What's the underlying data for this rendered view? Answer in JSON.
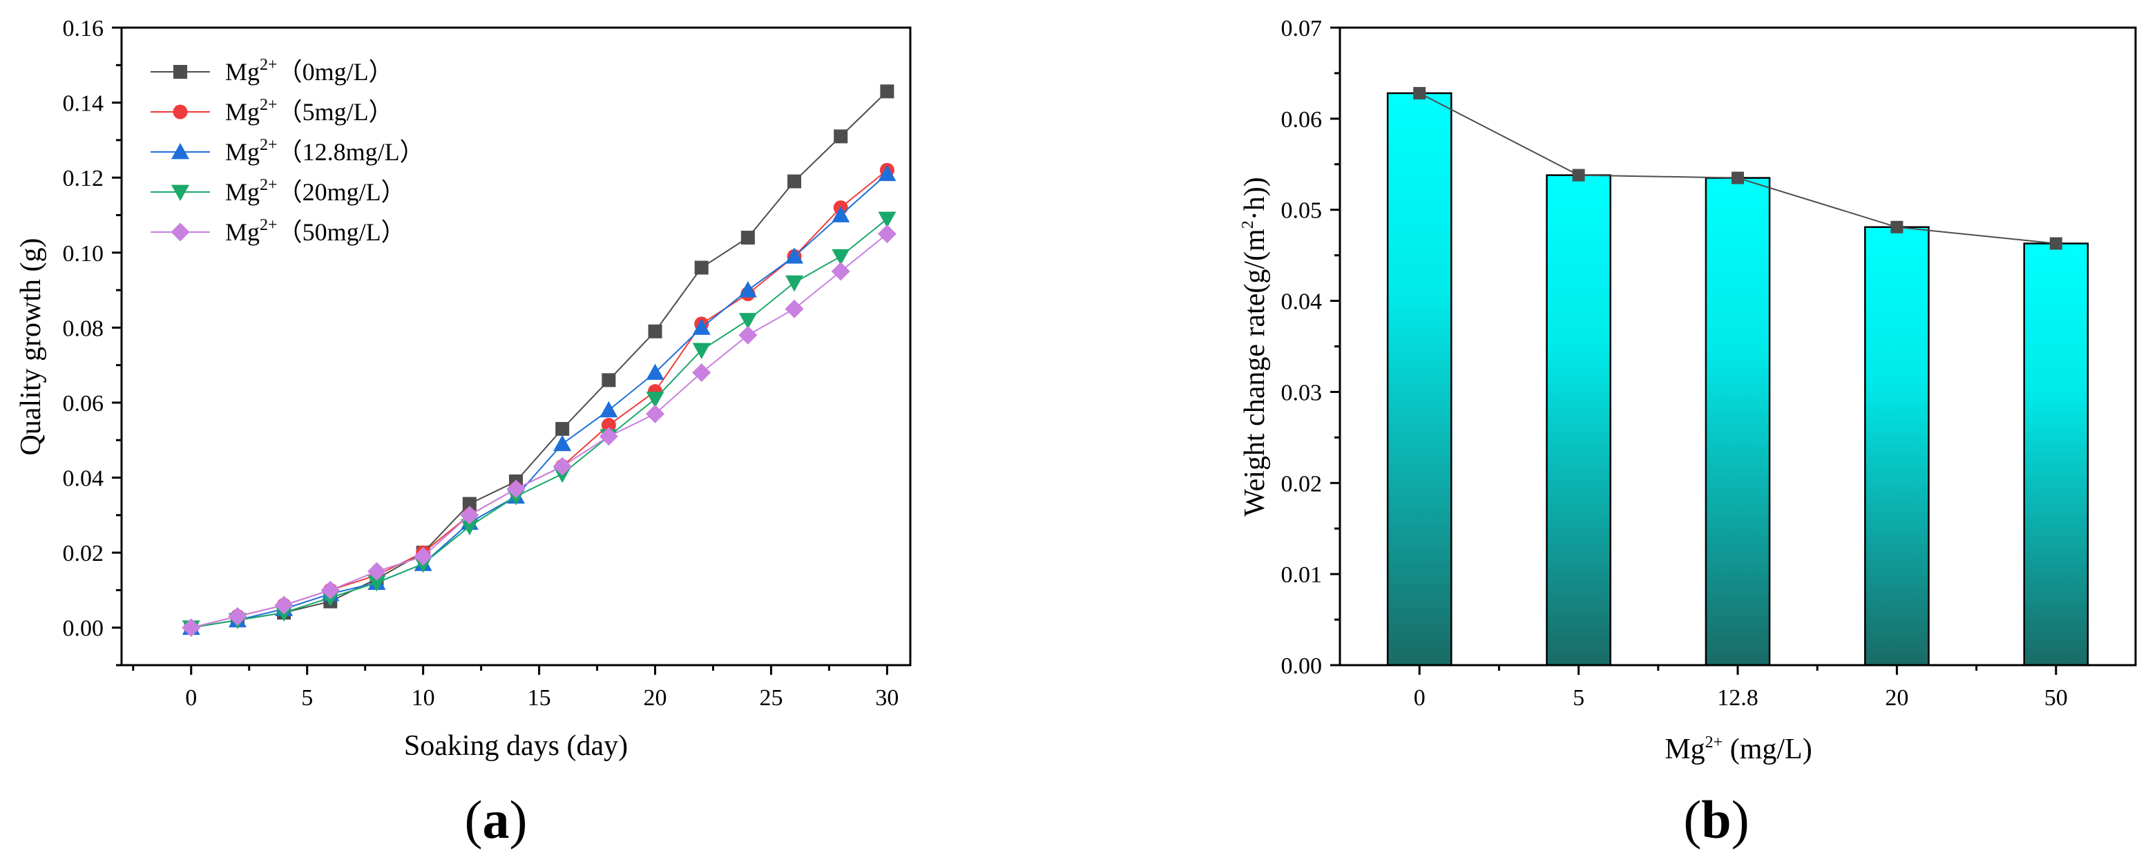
{
  "chart_data": [
    {
      "id": "a",
      "type": "line",
      "panel_label": "a",
      "xlabel": "Soaking days (day)",
      "ylabel": "Quality growth (g)",
      "xlim": [
        -3,
        31
      ],
      "ylim": [
        -0.01,
        0.16
      ],
      "xticks": [
        0,
        5,
        10,
        15,
        20,
        25,
        30
      ],
      "yticks": [
        0.0,
        0.02,
        0.04,
        0.06,
        0.08,
        0.1,
        0.12,
        0.14,
        0.16
      ],
      "legend_position": "top-left",
      "x": [
        0,
        2,
        4,
        6,
        8,
        10,
        12,
        14,
        16,
        18,
        20,
        22,
        24,
        26,
        28,
        30
      ],
      "series": [
        {
          "name": "Mg2+ (0mg/L)",
          "legend_base": "Mg",
          "legend_sup": "2+",
          "legend_rest": "（0mg/L）",
          "marker": "square",
          "color": "#4d4d4d",
          "values": [
            0.0,
            0.002,
            0.004,
            0.007,
            0.013,
            0.02,
            0.033,
            0.039,
            0.053,
            0.066,
            0.079,
            0.096,
            0.104,
            0.119,
            0.131,
            0.143
          ]
        },
        {
          "name": "Mg2+ (5mg/L)",
          "legend_base": "Mg",
          "legend_sup": "2+",
          "legend_rest": "（5mg/L）",
          "marker": "circle",
          "color": "#ee3b3b",
          "values": [
            0.0,
            0.003,
            0.006,
            0.01,
            0.014,
            0.02,
            0.03,
            0.037,
            0.043,
            0.054,
            0.063,
            0.081,
            0.089,
            0.099,
            0.112,
            0.122
          ]
        },
        {
          "name": "Mg2+ (12.8mg/L)",
          "legend_base": "Mg",
          "legend_sup": "2+",
          "legend_rest": "（12.8mg/L）",
          "marker": "triangle-up",
          "color": "#1e6fd9",
          "values": [
            0.0,
            0.002,
            0.005,
            0.009,
            0.012,
            0.017,
            0.028,
            0.035,
            0.049,
            0.058,
            0.068,
            0.08,
            0.09,
            0.099,
            0.11,
            0.121
          ]
        },
        {
          "name": "Mg2+ (20mg/L)",
          "legend_base": "Mg",
          "legend_sup": "2+",
          "legend_rest": "（20mg/L）",
          "marker": "triangle-down",
          "color": "#1aa96a",
          "values": [
            0.0,
            0.002,
            0.004,
            0.008,
            0.012,
            0.017,
            0.027,
            0.035,
            0.041,
            0.051,
            0.061,
            0.074,
            0.082,
            0.092,
            0.099,
            0.109
          ]
        },
        {
          "name": "Mg2+ (50mg/L)",
          "legend_base": "Mg",
          "legend_sup": "2+",
          "legend_rest": "（50mg/L）",
          "marker": "diamond",
          "color": "#c980e0",
          "values": [
            0.0,
            0.003,
            0.006,
            0.01,
            0.015,
            0.019,
            0.03,
            0.037,
            0.043,
            0.051,
            0.057,
            0.068,
            0.078,
            0.085,
            0.095,
            0.105
          ]
        }
      ]
    },
    {
      "id": "b",
      "type": "bar",
      "panel_label": "b",
      "xlabel_base": "Mg",
      "xlabel_sup": "2+",
      "xlabel_rest": " (mg/L)",
      "ylabel_prefix": "Weight change rate(g/(m",
      "ylabel_sup": "2",
      "ylabel_suffix": "·h))",
      "ylim": [
        0,
        0.07
      ],
      "yticks": [
        0.0,
        0.01,
        0.02,
        0.03,
        0.04,
        0.05,
        0.06,
        0.07
      ],
      "categories": [
        "0",
        "5",
        "12.8",
        "20",
        "50"
      ],
      "values": [
        0.0628,
        0.0538,
        0.0535,
        0.0481,
        0.0463
      ],
      "bar_color_top": "#00ffff",
      "bar_color_bottom": "#1a6b66",
      "line_color": "#4d4d4d"
    }
  ]
}
